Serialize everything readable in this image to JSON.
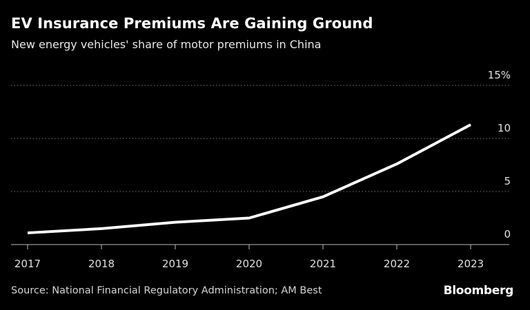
{
  "header": {
    "title": "EV Insurance Premiums Are Gaining Ground",
    "subtitle": "New energy vehicles' share of motor premiums in China"
  },
  "footer": {
    "source": "Source: National Financial Regulatory Administration; AM Best",
    "logo": "Bloomberg"
  },
  "colors": {
    "background": "#000000",
    "line": "#ffffff",
    "grid": "#7a7a7a",
    "axis": "#bdbdbd",
    "text": "#ffffff"
  },
  "chart_data": {
    "type": "line",
    "title": "EV Insurance Premiums Are Gaining Ground",
    "subtitle": "New energy vehicles' share of motor premiums in China",
    "x": [
      "2017",
      "2018",
      "2019",
      "2020",
      "2021",
      "2022",
      "2023"
    ],
    "series": [
      {
        "values": [
          1.1,
          1.5,
          2.1,
          2.5,
          4.5,
          7.6,
          11.3
        ]
      }
    ],
    "y_ticks": [
      {
        "value": 0,
        "label": "0"
      },
      {
        "value": 5,
        "label": "5"
      },
      {
        "value": 10,
        "label": "10"
      },
      {
        "value": 15,
        "label": "15%"
      }
    ],
    "ylim": [
      0,
      15
    ],
    "y_axis_side": "right",
    "grid": "horizontal dotted",
    "legend": "none"
  }
}
